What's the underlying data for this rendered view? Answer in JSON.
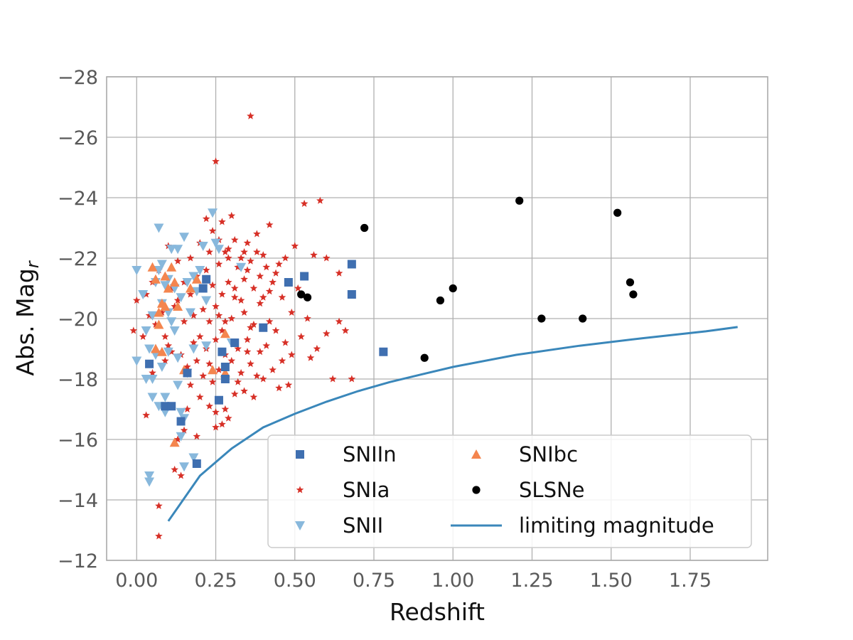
{
  "chart_data": {
    "type": "scatter",
    "xlabel": "Redshift",
    "ylabel": "Abs. Mag",
    "ylabel_subscript": "r",
    "xlim": [
      -0.095,
      1.995
    ],
    "ylim": [
      -12,
      -28
    ],
    "y_inverted": true,
    "grid": true,
    "legend_position": "lower-right",
    "legend_columns": 2,
    "xticks": [
      0.0,
      0.25,
      0.5,
      0.75,
      1.0,
      1.25,
      1.5,
      1.75
    ],
    "xtick_labels": [
      "0.00",
      "0.25",
      "0.50",
      "0.75",
      "1.00",
      "1.25",
      "1.50",
      "1.75"
    ],
    "yticks": [
      -12,
      -14,
      -16,
      -18,
      -20,
      -22,
      -24,
      -26,
      -28
    ],
    "ytick_labels": [
      "−12",
      "−14",
      "−16",
      "−18",
      "−20",
      "−22",
      "−24",
      "−26",
      "−28"
    ],
    "series": [
      {
        "name": "SNIIn",
        "marker": "square",
        "color": "#3f6fb0",
        "legend_slot": 0,
        "points": [
          [
            0.04,
            -18.5
          ],
          [
            0.09,
            -17.1
          ],
          [
            0.11,
            -17.1
          ],
          [
            0.14,
            -16.6
          ],
          [
            0.19,
            -15.2
          ],
          [
            0.21,
            -21.0
          ],
          [
            0.22,
            -21.3
          ],
          [
            0.26,
            -17.3
          ],
          [
            0.27,
            -18.9
          ],
          [
            0.28,
            -18.0
          ],
          [
            0.28,
            -18.4
          ],
          [
            0.4,
            -19.7
          ],
          [
            0.48,
            -21.2
          ],
          [
            0.53,
            -21.4
          ],
          [
            0.68,
            -21.8
          ],
          [
            0.68,
            -20.8
          ],
          [
            0.78,
            -18.9
          ],
          [
            0.16,
            -18.2
          ],
          [
            0.31,
            -19.2
          ]
        ]
      },
      {
        "name": "SNIa",
        "marker": "star",
        "color": "#d73027",
        "legend_slot": 1,
        "points": [
          [
            0.36,
            -26.7
          ],
          [
            0.25,
            -25.2
          ],
          [
            0.58,
            -23.9
          ],
          [
            0.53,
            -23.8
          ],
          [
            0.42,
            -23.1
          ],
          [
            0.22,
            -23.3
          ],
          [
            0.27,
            -23.2
          ],
          [
            0.3,
            -23.4
          ],
          [
            0.24,
            -22.9
          ],
          [
            0.35,
            -22.5
          ],
          [
            0.38,
            -22.8
          ],
          [
            0.31,
            -22.6
          ],
          [
            0.28,
            -22.2
          ],
          [
            0.33,
            -22.0
          ],
          [
            0.36,
            -21.9
          ],
          [
            0.4,
            -22.1
          ],
          [
            0.45,
            -21.8
          ],
          [
            0.5,
            -22.4
          ],
          [
            0.56,
            -22.1
          ],
          [
            0.6,
            -22.0
          ],
          [
            0.64,
            -21.5
          ],
          [
            0.2,
            -22.5
          ],
          [
            0.17,
            -22.0
          ],
          [
            0.13,
            -21.9
          ],
          [
            0.1,
            -22.4
          ],
          [
            0.07,
            -21.6
          ],
          [
            0.05,
            -21.2
          ],
          [
            0.03,
            -20.8
          ],
          [
            0.0,
            -20.6
          ],
          [
            -0.01,
            -19.6
          ],
          [
            0.02,
            -19.4
          ],
          [
            0.08,
            -20.2
          ],
          [
            0.12,
            -20.4
          ],
          [
            0.15,
            -19.9
          ],
          [
            0.18,
            -20.1
          ],
          [
            0.2,
            -19.4
          ],
          [
            0.22,
            -19.0
          ],
          [
            0.25,
            -20.4
          ],
          [
            0.27,
            -20.8
          ],
          [
            0.29,
            -21.2
          ],
          [
            0.31,
            -20.7
          ],
          [
            0.34,
            -20.2
          ],
          [
            0.37,
            -19.8
          ],
          [
            0.39,
            -20.5
          ],
          [
            0.42,
            -20.9
          ],
          [
            0.44,
            -19.6
          ],
          [
            0.47,
            -19.2
          ],
          [
            0.49,
            -18.8
          ],
          [
            0.52,
            -19.4
          ],
          [
            0.54,
            -20.0
          ],
          [
            0.57,
            -19.0
          ],
          [
            0.6,
            -19.5
          ],
          [
            0.64,
            -19.9
          ],
          [
            0.66,
            -19.6
          ],
          [
            0.62,
            -18.0
          ],
          [
            0.68,
            -18.0
          ],
          [
            0.55,
            -18.7
          ],
          [
            0.48,
            -17.8
          ],
          [
            0.45,
            -17.7
          ],
          [
            0.43,
            -18.3
          ],
          [
            0.4,
            -18.0
          ],
          [
            0.37,
            -17.4
          ],
          [
            0.34,
            -17.6
          ],
          [
            0.31,
            -17.5
          ],
          [
            0.29,
            -16.7
          ],
          [
            0.27,
            -16.5
          ],
          [
            0.25,
            -16.9
          ],
          [
            0.23,
            -17.1
          ],
          [
            0.2,
            -17.4
          ],
          [
            0.17,
            -17.8
          ],
          [
            0.15,
            -16.3
          ],
          [
            0.13,
            -16.0
          ],
          [
            0.12,
            -15.0
          ],
          [
            0.14,
            -14.8
          ],
          [
            0.07,
            -13.8
          ],
          [
            0.07,
            -12.8
          ],
          [
            0.03,
            -16.8
          ],
          [
            0.05,
            -18.2
          ],
          [
            0.09,
            -18.6
          ],
          [
            0.11,
            -18.9
          ],
          [
            0.16,
            -18.4
          ],
          [
            0.19,
            -18.6
          ],
          [
            0.21,
            -18.1
          ],
          [
            0.24,
            -17.9
          ],
          [
            0.26,
            -18.3
          ],
          [
            0.28,
            -18.8
          ],
          [
            0.3,
            -18.6
          ],
          [
            0.33,
            -18.2
          ],
          [
            0.36,
            -18.5
          ],
          [
            0.39,
            -18.9
          ],
          [
            0.41,
            -19.1
          ],
          [
            0.22,
            -21.6
          ],
          [
            0.24,
            -21.1
          ],
          [
            0.26,
            -21.8
          ],
          [
            0.29,
            -22.0
          ],
          [
            0.32,
            -21.7
          ],
          [
            0.34,
            -21.3
          ],
          [
            0.37,
            -21.0
          ],
          [
            0.39,
            -21.4
          ],
          [
            0.41,
            -21.7
          ],
          [
            0.43,
            -21.2
          ],
          [
            0.46,
            -20.7
          ],
          [
            0.49,
            -20.2
          ],
          [
            0.15,
            -21.2
          ],
          [
            0.17,
            -20.8
          ],
          [
            0.19,
            -21.4
          ],
          [
            0.13,
            -20.6
          ],
          [
            0.11,
            -21.0
          ],
          [
            0.09,
            -19.4
          ],
          [
            0.06,
            -19.8
          ],
          [
            0.04,
            -20.1
          ],
          [
            0.1,
            -19.1
          ],
          [
            0.14,
            -18.8
          ],
          [
            0.32,
            -17.9
          ],
          [
            0.35,
            -19.3
          ],
          [
            0.27,
            -19.6
          ],
          [
            0.23,
            -19.9
          ],
          [
            0.26,
            -20.1
          ],
          [
            0.3,
            -20.0
          ],
          [
            0.33,
            -20.6
          ],
          [
            0.35,
            -21.6
          ],
          [
            0.38,
            -22.2
          ],
          [
            0.21,
            -20.3
          ],
          [
            0.18,
            -19.2
          ],
          [
            0.42,
            -19.9
          ],
          [
            0.44,
            -21.5
          ],
          [
            0.47,
            -22.0
          ],
          [
            0.51,
            -21.0
          ],
          [
            0.46,
            -18.6
          ],
          [
            0.38,
            -18.1
          ],
          [
            0.23,
            -18.5
          ],
          [
            0.16,
            -17.0
          ],
          [
            0.19,
            -16.1
          ],
          [
            0.25,
            -16.4
          ],
          [
            0.28,
            -17.0
          ],
          [
            0.32,
            -19.0
          ],
          [
            0.36,
            -19.7
          ],
          [
            0.34,
            -22.2
          ],
          [
            0.29,
            -22.3
          ],
          [
            0.26,
            -22.6
          ],
          [
            0.23,
            -22.2
          ],
          [
            0.31,
            -21.0
          ],
          [
            0.28,
            -19.9
          ],
          [
            0.35,
            -18.9
          ],
          [
            0.4,
            -20.7
          ],
          [
            0.25,
            -19.3
          ]
        ]
      },
      {
        "name": "SNII",
        "marker": "triangle-down",
        "color": "#88b8dc",
        "legend_slot": 2,
        "points": [
          [
            0.0,
            -21.6
          ],
          [
            0.0,
            -18.6
          ],
          [
            0.02,
            -20.8
          ],
          [
            0.03,
            -19.6
          ],
          [
            0.04,
            -19.0
          ],
          [
            0.04,
            -14.8
          ],
          [
            0.04,
            -14.6
          ],
          [
            0.05,
            -17.4
          ],
          [
            0.05,
            -18.0
          ],
          [
            0.05,
            -20.1
          ],
          [
            0.06,
            -21.2
          ],
          [
            0.07,
            -21.6
          ],
          [
            0.07,
            -23.0
          ],
          [
            0.08,
            -21.8
          ],
          [
            0.08,
            -20.5
          ],
          [
            0.08,
            -18.4
          ],
          [
            0.09,
            -17.4
          ],
          [
            0.09,
            -16.9
          ],
          [
            0.1,
            -18.9
          ],
          [
            0.1,
            -20.2
          ],
          [
            0.1,
            -21.3
          ],
          [
            0.11,
            -22.3
          ],
          [
            0.12,
            -21.0
          ],
          [
            0.12,
            -19.6
          ],
          [
            0.13,
            -18.7
          ],
          [
            0.13,
            -17.8
          ],
          [
            0.14,
            -16.9
          ],
          [
            0.15,
            -15.1
          ],
          [
            0.14,
            -16.1
          ],
          [
            0.15,
            -16.7
          ],
          [
            0.15,
            -22.7
          ],
          [
            0.13,
            -22.3
          ],
          [
            0.16,
            -21.2
          ],
          [
            0.17,
            -20.2
          ],
          [
            0.18,
            -19.0
          ],
          [
            0.18,
            -21.4
          ],
          [
            0.18,
            -15.4
          ],
          [
            0.19,
            -20.9
          ],
          [
            0.21,
            -22.4
          ],
          [
            0.24,
            -23.5
          ],
          [
            0.25,
            -22.5
          ],
          [
            0.26,
            -22.3
          ],
          [
            0.22,
            -20.6
          ],
          [
            0.22,
            -19.1
          ],
          [
            0.06,
            -18.8
          ],
          [
            0.03,
            -18.0
          ],
          [
            0.07,
            -17.1
          ],
          [
            0.11,
            -19.9
          ],
          [
            0.09,
            -21.1
          ],
          [
            0.16,
            -18.2
          ],
          [
            0.2,
            -21.6
          ],
          [
            0.33,
            -21.7
          ],
          [
            0.3,
            -19.2
          ],
          [
            0.14,
            -20.7
          ]
        ]
      },
      {
        "name": "SNIbc",
        "marker": "triangle-up",
        "color": "#f4854e",
        "legend_slot": 3,
        "points": [
          [
            0.05,
            -21.7
          ],
          [
            0.06,
            -21.3
          ],
          [
            0.07,
            -20.2
          ],
          [
            0.07,
            -19.8
          ],
          [
            0.08,
            -20.5
          ],
          [
            0.06,
            -19.0
          ],
          [
            0.08,
            -18.9
          ],
          [
            0.09,
            -20.4
          ],
          [
            0.1,
            -21.0
          ],
          [
            0.11,
            -21.7
          ],
          [
            0.12,
            -21.2
          ],
          [
            0.12,
            -15.9
          ],
          [
            0.15,
            -18.3
          ],
          [
            0.17,
            -21.0
          ],
          [
            0.19,
            -21.3
          ],
          [
            0.28,
            -19.5
          ],
          [
            0.28,
            -18.2
          ],
          [
            0.24,
            -18.3
          ],
          [
            0.09,
            -21.4
          ],
          [
            0.13,
            -20.4
          ]
        ]
      },
      {
        "name": "SLSNe",
        "marker": "circle",
        "color": "#000000",
        "legend_slot": 4,
        "points": [
          [
            0.52,
            -20.8
          ],
          [
            0.54,
            -20.7
          ],
          [
            0.72,
            -23.0
          ],
          [
            0.91,
            -18.7
          ],
          [
            0.96,
            -20.6
          ],
          [
            1.0,
            -21.0
          ],
          [
            1.21,
            -23.9
          ],
          [
            1.28,
            -20.0
          ],
          [
            1.41,
            -20.0
          ],
          [
            1.52,
            -23.5
          ],
          [
            1.56,
            -21.2
          ],
          [
            1.57,
            -20.8
          ]
        ]
      },
      {
        "name": "limiting magnitude",
        "marker": "line",
        "color": "#3a87ba",
        "legend_slot": 5,
        "points": [
          [
            0.1,
            -13.3
          ],
          [
            0.2,
            -14.8
          ],
          [
            0.3,
            -15.7
          ],
          [
            0.4,
            -16.4
          ],
          [
            0.5,
            -16.85
          ],
          [
            0.6,
            -17.25
          ],
          [
            0.7,
            -17.6
          ],
          [
            0.8,
            -17.9
          ],
          [
            0.9,
            -18.15
          ],
          [
            1.0,
            -18.4
          ],
          [
            1.2,
            -18.8
          ],
          [
            1.4,
            -19.1
          ],
          [
            1.6,
            -19.35
          ],
          [
            1.8,
            -19.58
          ],
          [
            1.9,
            -19.72
          ]
        ]
      }
    ]
  }
}
